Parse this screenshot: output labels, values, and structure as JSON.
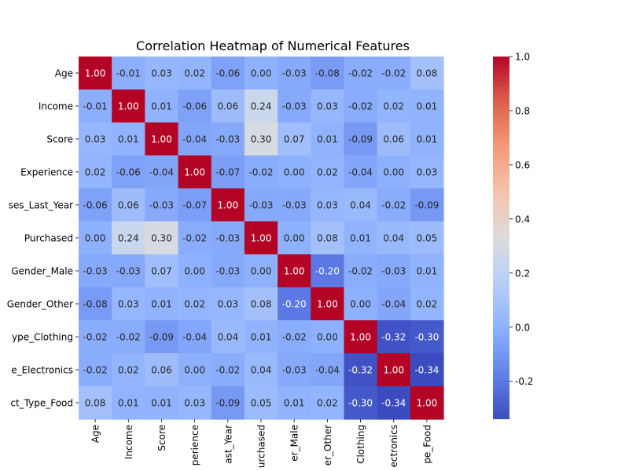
{
  "chart_data": {
    "type": "heatmap",
    "title": "Correlation Heatmap of Numerical Features",
    "row_labels": [
      "Age",
      "Income",
      "Score",
      "Experience",
      "ses_Last_Year",
      "Purchased",
      "Gender_Male",
      "Gender_Other",
      "ype_Clothing",
      "e_Electronics",
      "ct_Type_Food"
    ],
    "col_labels": [
      "Age",
      "Income",
      "Score",
      "perience",
      "ast_Year",
      "urchased",
      "er_Male",
      "er_Other",
      "Clothing",
      "ectronics",
      "pe_Food"
    ],
    "values": [
      [
        1.0,
        -0.01,
        0.03,
        0.02,
        -0.06,
        -0.0,
        -0.03,
        -0.08,
        -0.02,
        -0.02,
        0.08
      ],
      [
        -0.01,
        1.0,
        0.01,
        -0.06,
        0.06,
        0.24,
        -0.03,
        0.03,
        -0.02,
        0.02,
        0.01
      ],
      [
        0.03,
        0.01,
        1.0,
        -0.04,
        -0.03,
        0.3,
        0.07,
        0.01,
        -0.09,
        0.06,
        0.01
      ],
      [
        0.02,
        -0.06,
        -0.04,
        1.0,
        -0.07,
        -0.02,
        0.0,
        0.02,
        -0.04,
        0.0,
        0.03
      ],
      [
        -0.06,
        0.06,
        -0.03,
        -0.07,
        1.0,
        -0.03,
        -0.03,
        0.03,
        0.04,
        -0.02,
        -0.09
      ],
      [
        -0.0,
        0.24,
        0.3,
        -0.02,
        -0.03,
        1.0,
        -0.0,
        0.08,
        0.01,
        0.04,
        0.05
      ],
      [
        -0.03,
        -0.03,
        0.07,
        0.0,
        -0.03,
        -0.0,
        1.0,
        -0.2,
        -0.02,
        -0.03,
        0.01
      ],
      [
        -0.08,
        0.03,
        0.01,
        0.02,
        0.03,
        0.08,
        -0.2,
        1.0,
        0.0,
        -0.04,
        0.02
      ],
      [
        -0.02,
        -0.02,
        -0.09,
        -0.04,
        0.04,
        0.01,
        -0.02,
        0.0,
        1.0,
        -0.32,
        -0.3
      ],
      [
        -0.02,
        0.02,
        0.06,
        0.0,
        -0.02,
        0.04,
        -0.03,
        -0.04,
        -0.32,
        1.0,
        -0.34
      ],
      [
        0.08,
        0.01,
        0.01,
        0.03,
        -0.09,
        0.05,
        0.01,
        0.02,
        -0.3,
        -0.34,
        1.0
      ]
    ],
    "value_range": [
      -0.34,
      1.0
    ],
    "colormap": "coolwarm",
    "colorbar_ticks": [
      "-0.2",
      "0.0",
      "0.2",
      "0.4",
      "0.6",
      "0.8",
      "1.0"
    ],
    "grid": false
  }
}
